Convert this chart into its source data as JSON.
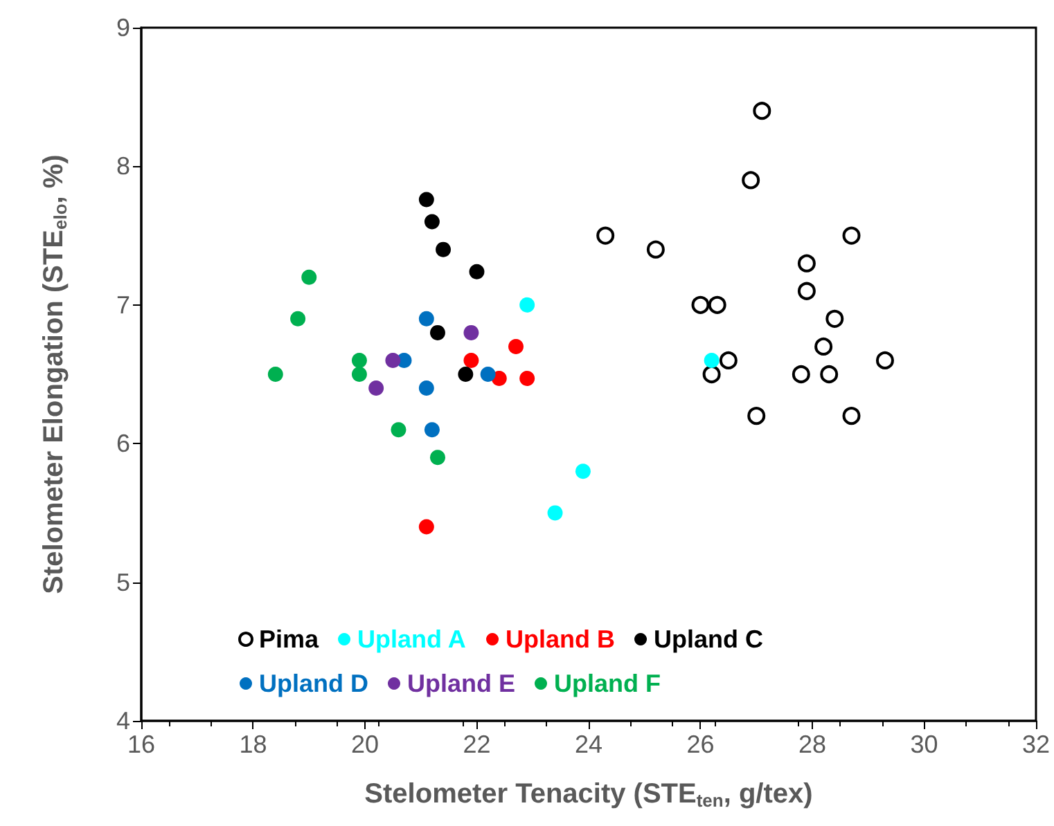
{
  "chart_data": {
    "type": "scatter",
    "xlabel": "Stelometer Tenacity (STE$_{ten}$, g/tex)",
    "ylabel": "Stelometer Elongation (STE$_{elo}$, %)",
    "xlim": [
      16,
      32
    ],
    "xticks": [
      16,
      18,
      20,
      22,
      24,
      26,
      28,
      30,
      32
    ],
    "ylim": [
      4,
      9
    ],
    "yticks": [
      4,
      5,
      6,
      7,
      8,
      9
    ],
    "grid": false,
    "legend": "bottom",
    "marker": "circle",
    "series": [
      {
        "name": "Pima",
        "color": "#000000",
        "marker": "open circle",
        "x": [
          27.1,
          26.9,
          24.3,
          25.2,
          28.7,
          27.9,
          27.9,
          26.0,
          26.3,
          28.4,
          28.2,
          26.5,
          29.3,
          26.2,
          27.8,
          28.3,
          27.0,
          28.7
        ],
        "values": [
          8.4,
          7.9,
          7.5,
          7.4,
          7.5,
          7.3,
          7.1,
          7.0,
          7.0,
          6.9,
          6.7,
          6.6,
          6.6,
          6.5,
          6.5,
          6.5,
          6.2,
          6.2
        ]
      },
      {
        "name": "Upland A",
        "color": "#00ffff",
        "x": [
          22.9,
          26.2,
          23.9,
          23.4
        ],
        "values": [
          7.0,
          6.6,
          5.8,
          5.5
        ]
      },
      {
        "name": "Upland B",
        "color": "#ff0000",
        "x": [
          21.1,
          22.7,
          21.9,
          22.4,
          22.9
        ],
        "values": [
          5.4,
          6.7,
          6.6,
          6.47,
          6.47
        ]
      },
      {
        "name": "Upland C",
        "color": "#000000",
        "x": [
          21.1,
          21.2,
          21.4,
          22.0,
          21.3,
          21.8
        ],
        "values": [
          7.76,
          7.6,
          7.4,
          7.24,
          6.8,
          6.5
        ]
      },
      {
        "name": "Upland D",
        "color": "#0070c0",
        "x": [
          21.1,
          20.7,
          22.2,
          21.1,
          21.2
        ],
        "values": [
          6.9,
          6.6,
          6.5,
          6.4,
          6.1
        ]
      },
      {
        "name": "Upland E",
        "color": "#7030a0",
        "x": [
          21.9,
          20.5,
          20.2
        ],
        "values": [
          6.8,
          6.6,
          6.4
        ]
      },
      {
        "name": "Upland F",
        "color": "#00b050",
        "x": [
          19.0,
          18.8,
          18.4,
          19.9,
          19.9,
          20.6,
          21.3
        ],
        "values": [
          7.2,
          6.9,
          6.5,
          6.6,
          6.5,
          6.1,
          5.9
        ]
      }
    ]
  }
}
